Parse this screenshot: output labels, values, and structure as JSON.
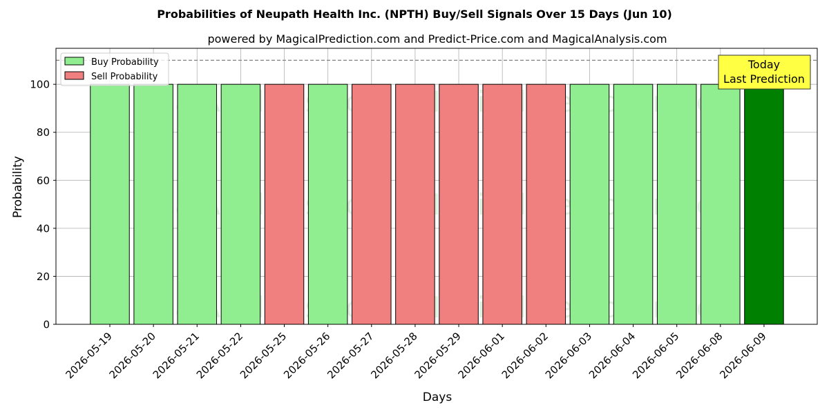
{
  "chart_data": {
    "type": "bar",
    "title": "Probabilities of Neupath Health Inc. (NPTH) Buy/Sell Signals Over 15 Days (Jun 10)",
    "subtitle": "powered by MagicalPrediction.com and Predict-Price.com and MagicalAnalysis.com",
    "xlabel": "Days",
    "ylabel": "Probability",
    "ylim": [
      0,
      115
    ],
    "yticks": [
      0,
      20,
      40,
      60,
      80,
      100
    ],
    "reference_line": 110,
    "grid": true,
    "legend_position": "top-left",
    "categories": [
      "2026-05-19",
      "2026-05-20",
      "2026-05-21",
      "2026-05-22",
      "2026-05-25",
      "2026-05-26",
      "2026-05-27",
      "2026-05-28",
      "2026-05-29",
      "2026-06-01",
      "2026-06-02",
      "2026-06-03",
      "2026-06-04",
      "2026-06-05",
      "2026-06-08",
      "2026-06-09"
    ],
    "values": [
      100,
      100,
      100,
      100,
      100,
      100,
      100,
      100,
      100,
      100,
      100,
      100,
      100,
      100,
      100,
      100
    ],
    "signals": [
      "buy",
      "buy",
      "buy",
      "buy",
      "sell",
      "buy",
      "sell",
      "sell",
      "sell",
      "sell",
      "sell",
      "buy",
      "buy",
      "buy",
      "buy",
      "today"
    ],
    "legend": [
      {
        "label": "Buy Probability",
        "color": "#90ee90"
      },
      {
        "label": "Sell Probability",
        "color": "#f08080"
      }
    ],
    "colors": {
      "buy": "#90ee90",
      "sell": "#f08080",
      "today": "#008000",
      "annotation_bg": "#ffff44"
    },
    "annotation": {
      "line1": "Today",
      "line2": "Last Prediction"
    },
    "watermarks": [
      "MagicalAnalysis.com",
      "MagicalPrediction.com"
    ]
  }
}
